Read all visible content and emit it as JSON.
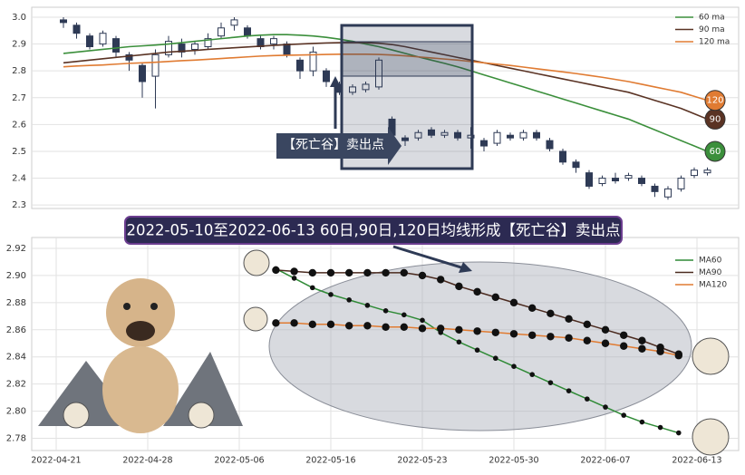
{
  "chart_data": [
    {
      "type": "candlestick",
      "open": [
        2.99,
        2.97,
        2.93,
        2.9,
        2.92,
        2.86,
        2.82,
        2.78,
        2.86,
        2.9,
        2.88,
        2.89,
        2.93,
        2.97,
        2.96,
        2.92,
        2.9,
        2.9,
        2.84,
        2.8,
        2.8,
        2.75,
        2.72,
        2.73,
        2.74,
        2.62,
        2.55,
        2.55,
        2.58,
        2.56,
        2.57,
        2.55,
        2.54,
        2.53,
        2.56,
        2.55,
        2.57,
        2.54,
        2.5,
        2.46,
        2.42,
        2.38,
        2.4,
        2.4,
        2.4,
        2.37,
        2.33,
        2.36,
        2.41,
        2.42
      ],
      "high": [
        3.0,
        2.98,
        2.94,
        2.95,
        2.93,
        2.87,
        2.83,
        2.88,
        2.93,
        2.92,
        2.91,
        2.94,
        2.98,
        3.0,
        2.97,
        2.93,
        2.93,
        2.91,
        2.85,
        2.89,
        2.81,
        2.76,
        2.75,
        2.76,
        2.85,
        2.63,
        2.56,
        2.58,
        2.59,
        2.58,
        2.58,
        2.59,
        2.55,
        2.58,
        2.57,
        2.58,
        2.58,
        2.55,
        2.51,
        2.47,
        2.43,
        2.41,
        2.42,
        2.42,
        2.41,
        2.38,
        2.37,
        2.41,
        2.44,
        2.44
      ],
      "low": [
        2.96,
        2.92,
        2.88,
        2.89,
        2.85,
        2.8,
        2.7,
        2.66,
        2.85,
        2.85,
        2.86,
        2.88,
        2.92,
        2.95,
        2.92,
        2.88,
        2.88,
        2.85,
        2.77,
        2.78,
        2.74,
        2.71,
        2.71,
        2.72,
        2.73,
        2.54,
        2.52,
        2.54,
        2.55,
        2.55,
        2.54,
        2.51,
        2.5,
        2.52,
        2.54,
        2.54,
        2.54,
        2.5,
        2.45,
        2.42,
        2.36,
        2.37,
        2.38,
        2.39,
        2.37,
        2.33,
        2.32,
        2.35,
        2.4,
        2.41
      ],
      "close": [
        2.98,
        2.94,
        2.89,
        2.94,
        2.87,
        2.84,
        2.76,
        2.86,
        2.91,
        2.87,
        2.9,
        2.92,
        2.96,
        2.99,
        2.93,
        2.89,
        2.92,
        2.86,
        2.8,
        2.87,
        2.76,
        2.72,
        2.74,
        2.75,
        2.84,
        2.56,
        2.54,
        2.57,
        2.56,
        2.57,
        2.55,
        2.56,
        2.52,
        2.57,
        2.55,
        2.57,
        2.55,
        2.51,
        2.46,
        2.44,
        2.37,
        2.4,
        2.39,
        2.41,
        2.38,
        2.35,
        2.36,
        2.4,
        2.43,
        2.43
      ],
      "up_color": "#ffffff",
      "down_color": "#2e3a55",
      "series": [
        {
          "name": "60 ma",
          "badge": "60",
          "color": "#3b8f3b",
          "values": [
            2.865,
            2.87,
            2.875,
            2.88,
            2.885,
            2.89,
            2.893,
            2.896,
            2.9,
            2.905,
            2.91,
            2.915,
            2.92,
            2.925,
            2.93,
            2.933,
            2.935,
            2.935,
            2.933,
            2.93,
            2.925,
            2.918,
            2.91,
            2.9,
            2.89,
            2.878,
            2.865,
            2.852,
            2.84,
            2.828,
            2.815,
            2.8,
            2.785,
            2.77,
            2.755,
            2.74,
            2.725,
            2.71,
            2.695,
            2.68,
            2.665,
            2.65,
            2.635,
            2.62,
            2.6,
            2.58,
            2.56,
            2.54,
            2.52,
            2.5
          ]
        },
        {
          "name": "90 ma",
          "badge": "90",
          "color": "#5a3324",
          "values": [
            2.83,
            2.835,
            2.84,
            2.845,
            2.85,
            2.855,
            2.86,
            2.865,
            2.87,
            2.873,
            2.876,
            2.88,
            2.883,
            2.886,
            2.889,
            2.892,
            2.895,
            2.898,
            2.9,
            2.902,
            2.904,
            2.905,
            2.905,
            2.905,
            2.903,
            2.898,
            2.89,
            2.88,
            2.87,
            2.86,
            2.85,
            2.84,
            2.83,
            2.82,
            2.81,
            2.8,
            2.79,
            2.78,
            2.77,
            2.76,
            2.75,
            2.74,
            2.73,
            2.72,
            2.705,
            2.69,
            2.675,
            2.66,
            2.64,
            2.62
          ]
        },
        {
          "name": "120 ma",
          "badge": "120",
          "color": "#e07b32",
          "values": [
            2.815,
            2.818,
            2.82,
            2.822,
            2.825,
            2.828,
            2.83,
            2.832,
            2.835,
            2.838,
            2.84,
            2.843,
            2.846,
            2.849,
            2.852,
            2.855,
            2.857,
            2.858,
            2.859,
            2.86,
            2.861,
            2.862,
            2.862,
            2.862,
            2.861,
            2.859,
            2.856,
            2.852,
            2.848,
            2.844,
            2.84,
            2.835,
            2.83,
            2.825,
            2.82,
            2.814,
            2.808,
            2.802,
            2.796,
            2.79,
            2.783,
            2.776,
            2.768,
            2.76,
            2.75,
            2.74,
            2.73,
            2.72,
            2.705,
            2.69
          ]
        }
      ],
      "ylim": [
        2.287,
        3.037
      ],
      "yticks": [
        2.3,
        2.4,
        2.5,
        2.6,
        2.7,
        2.8,
        2.9,
        {
          "value": 3,
          "label": "3.0"
        }
      ],
      "grid": true,
      "legend": "upper right",
      "annotations": [
        "【死亡谷】卖出点",
        "2022-05-10至2022-06-13 60日,90日,120日均线形成【死亡谷】卖出点"
      ]
    },
    {
      "type": "line",
      "categories": [
        "2022-04-21",
        null,
        null,
        null,
        null,
        "2022-04-28",
        null,
        null,
        null,
        null,
        "2022-05-06",
        null,
        null,
        null,
        null,
        "2022-05-16",
        null,
        null,
        null,
        null,
        "2022-05-23",
        null,
        null,
        null,
        null,
        "2022-05-30",
        null,
        null,
        null,
        null,
        "2022-06-07",
        null,
        null,
        null,
        null,
        "2022-06-13"
      ],
      "series": [
        {
          "name": "MA60",
          "color": "#2f8a36",
          "marker_size": 2.8,
          "values": [
            null,
            null,
            null,
            null,
            null,
            null,
            null,
            null,
            null,
            null,
            null,
            null,
            2.905,
            2.898,
            2.891,
            2.886,
            2.882,
            2.878,
            2.874,
            2.871,
            2.867,
            2.858,
            2.851,
            2.845,
            2.839,
            2.833,
            2.827,
            2.821,
            2.815,
            2.809,
            2.803,
            2.797,
            2.792,
            2.788,
            2.784,
            null
          ]
        },
        {
          "name": "MA90",
          "color": "#4a2a1f",
          "marker_size": 4.2,
          "values": [
            null,
            null,
            null,
            null,
            null,
            null,
            null,
            null,
            null,
            null,
            null,
            null,
            2.904,
            2.903,
            2.902,
            2.902,
            2.902,
            2.902,
            2.902,
            2.902,
            2.9,
            2.897,
            2.892,
            2.888,
            2.884,
            2.88,
            2.876,
            2.872,
            2.868,
            2.864,
            2.86,
            2.856,
            2.852,
            2.847,
            2.842,
            null
          ]
        },
        {
          "name": "MA120",
          "color": "#e07b32",
          "marker_size": 4.2,
          "values": [
            null,
            null,
            null,
            null,
            null,
            null,
            null,
            null,
            null,
            null,
            null,
            null,
            2.865,
            2.865,
            2.864,
            2.864,
            2.863,
            2.863,
            2.862,
            2.862,
            2.861,
            2.861,
            2.86,
            2.859,
            2.858,
            2.857,
            2.856,
            2.855,
            2.854,
            2.852,
            2.85,
            2.848,
            2.846,
            2.844,
            2.841,
            null
          ]
        }
      ],
      "ylim": [
        2.771,
        2.928
      ],
      "yticks": [
        2.78,
        {
          "value": 2.8,
          "label": "2.80"
        },
        2.82,
        2.84,
        2.86,
        2.88,
        {
          "value": 2.9,
          "label": "2.90"
        },
        2.92
      ],
      "grid": true,
      "legend": "upper right"
    }
  ]
}
